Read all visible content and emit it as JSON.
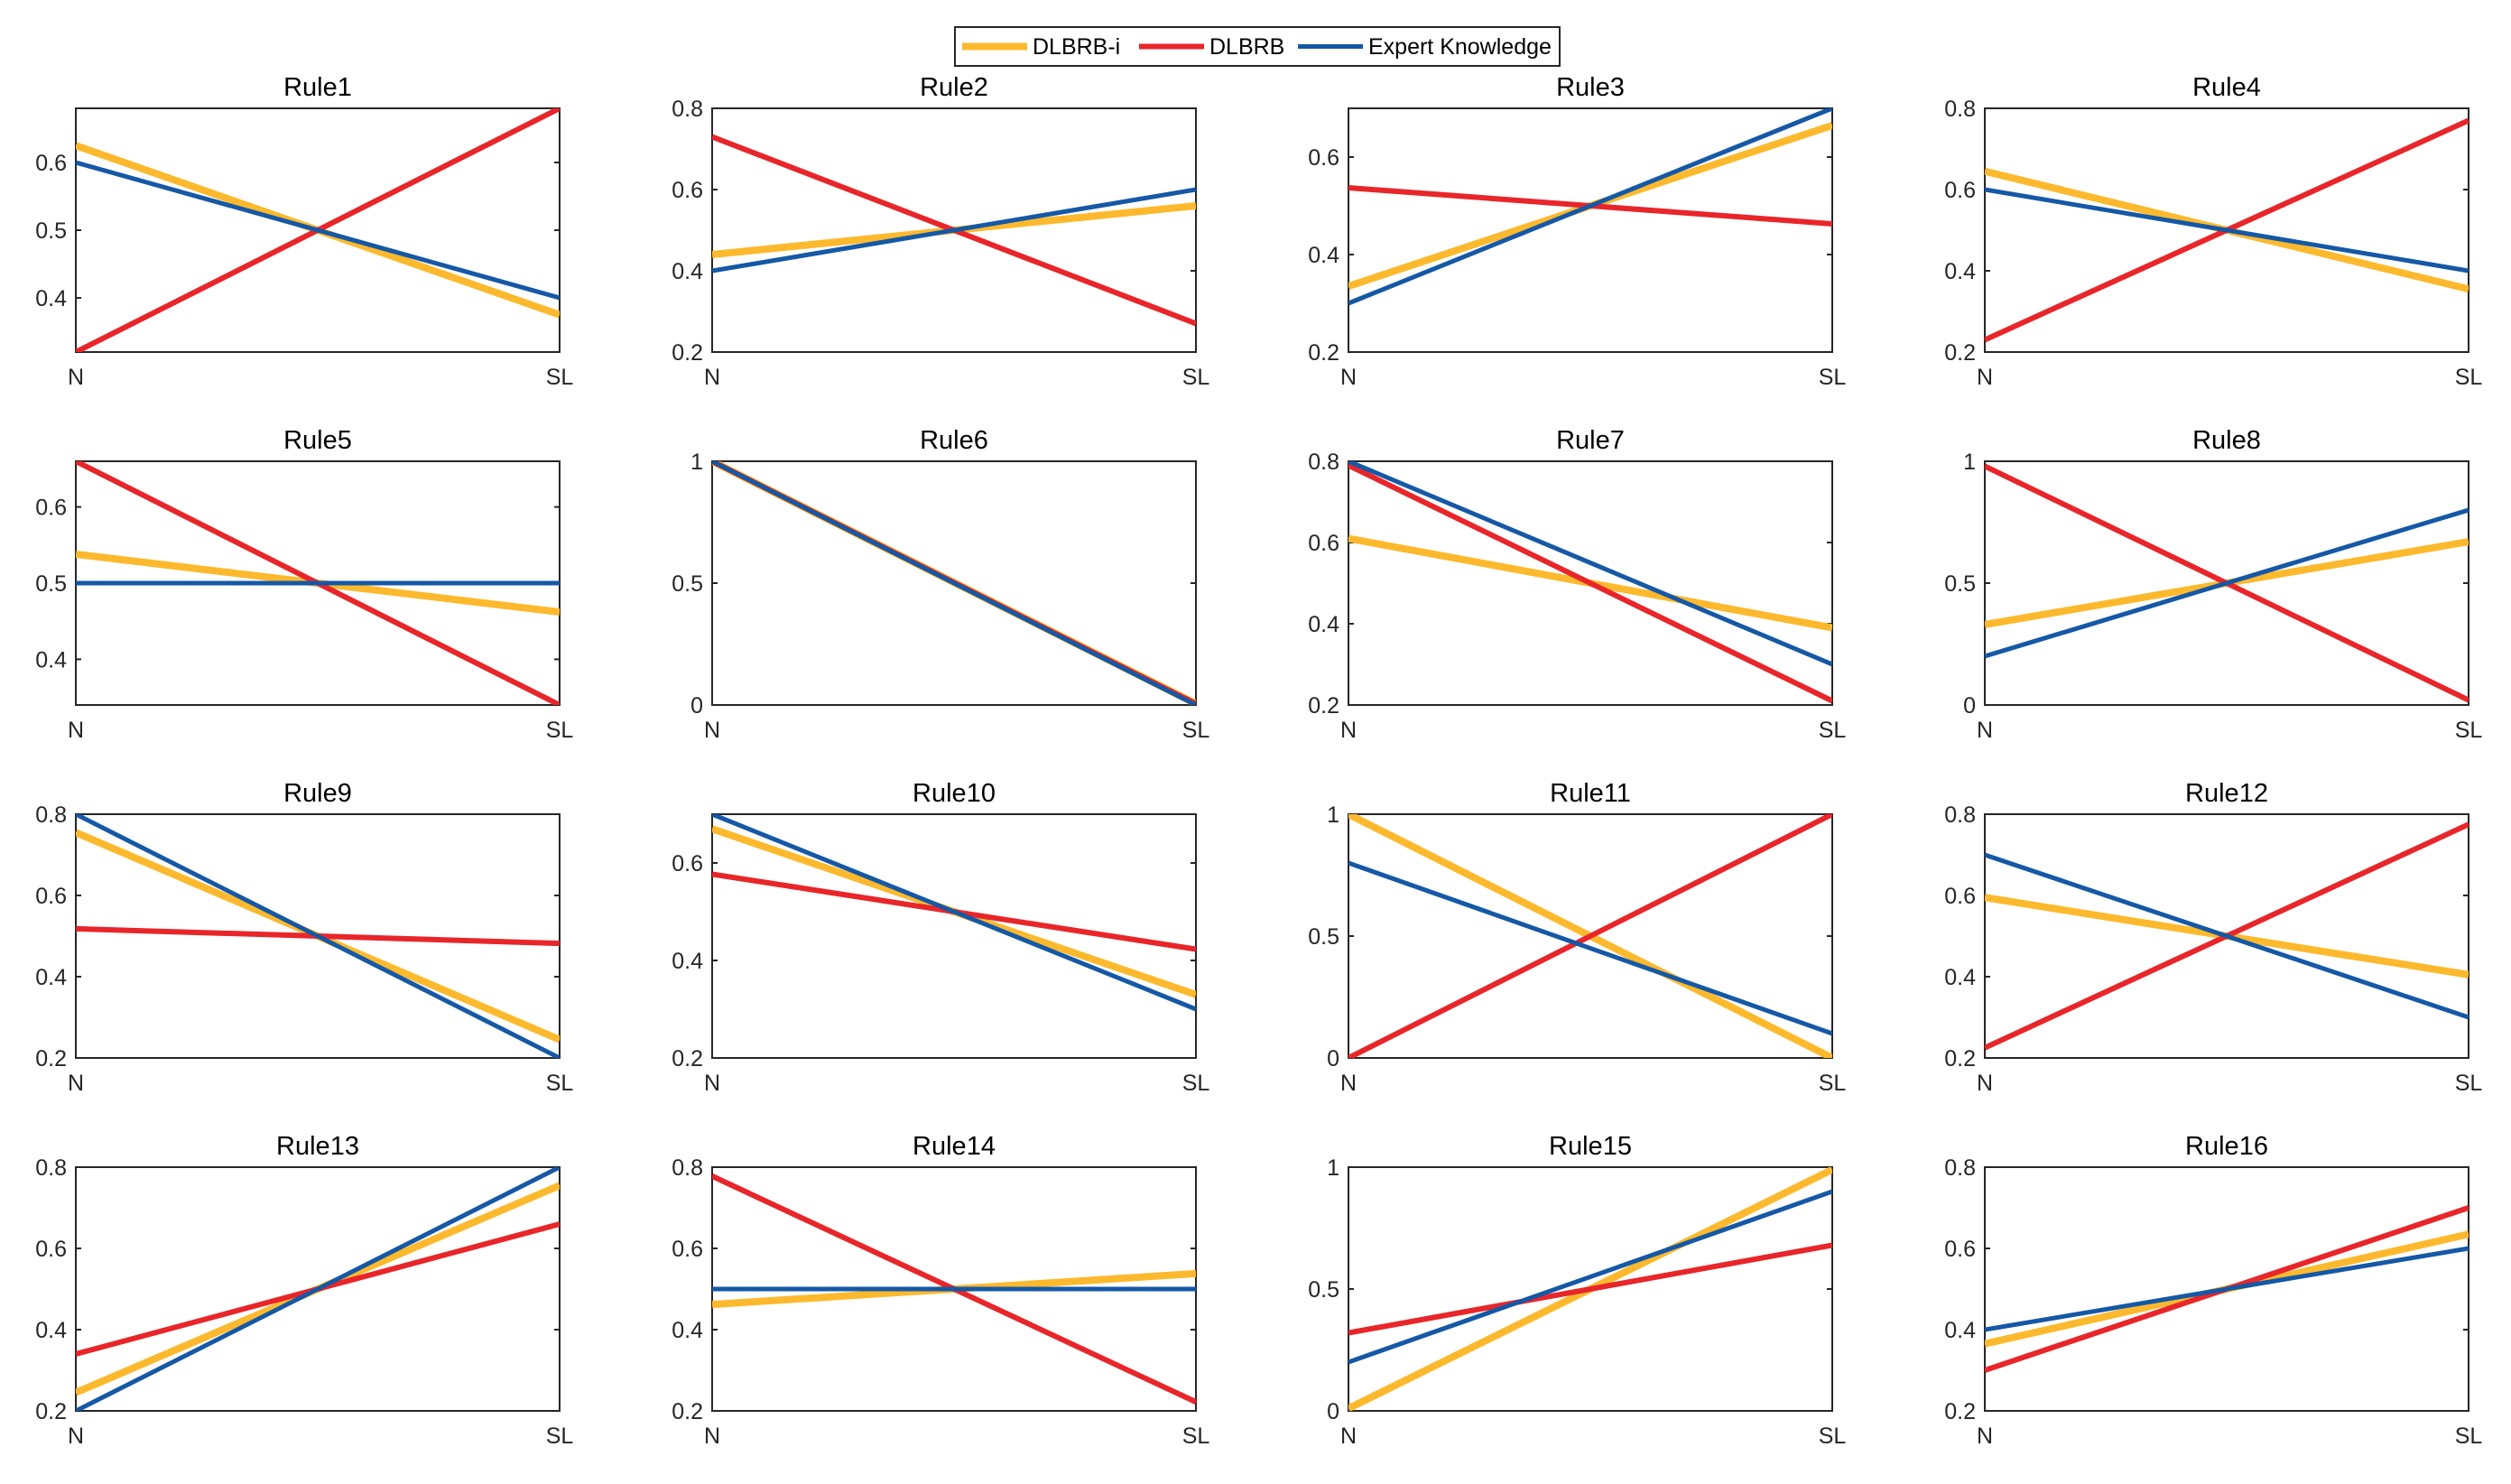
{
  "legend": {
    "entries": [
      {
        "name": "DLBRB-i",
        "color": "#FDB92D"
      },
      {
        "name": "DLBRB",
        "color": "#E8262A"
      },
      {
        "name": "Expert Knowledge",
        "color": "#1558A6"
      }
    ]
  },
  "chart_data": [
    {
      "type": "line",
      "title": "Rule1",
      "categories": [
        "N",
        "SL"
      ],
      "ylim": [
        0.32,
        0.68
      ],
      "yticks": [
        "0.4",
        "0.5",
        "0.6"
      ],
      "series": [
        {
          "name": "DLBRB-i",
          "values": [
            0.625,
            0.375
          ]
        },
        {
          "name": "DLBRB",
          "values": [
            0.32,
            0.68
          ]
        },
        {
          "name": "Expert Knowledge",
          "values": [
            0.6,
            0.4
          ]
        }
      ]
    },
    {
      "type": "line",
      "title": "Rule2",
      "categories": [
        "N",
        "SL"
      ],
      "ylim": [
        0.2,
        0.8
      ],
      "yticks": [
        "0.2",
        "0.4",
        "0.6",
        "0.8"
      ],
      "series": [
        {
          "name": "DLBRB-i",
          "values": [
            0.44,
            0.56
          ]
        },
        {
          "name": "DLBRB",
          "values": [
            0.73,
            0.27
          ]
        },
        {
          "name": "Expert Knowledge",
          "values": [
            0.4,
            0.6
          ]
        }
      ]
    },
    {
      "type": "line",
      "title": "Rule3",
      "categories": [
        "N",
        "SL"
      ],
      "ylim": [
        0.2,
        0.7
      ],
      "yticks": [
        "0.2",
        "0.4",
        "0.6"
      ],
      "series": [
        {
          "name": "DLBRB-i",
          "values": [
            0.335,
            0.665
          ]
        },
        {
          "name": "DLBRB",
          "values": [
            0.537,
            0.463
          ]
        },
        {
          "name": "Expert Knowledge",
          "values": [
            0.3,
            0.7
          ]
        }
      ]
    },
    {
      "type": "line",
      "title": "Rule4",
      "categories": [
        "N",
        "SL"
      ],
      "ylim": [
        0.2,
        0.8
      ],
      "yticks": [
        "0.2",
        "0.4",
        "0.6",
        "0.8"
      ],
      "series": [
        {
          "name": "DLBRB-i",
          "values": [
            0.645,
            0.355
          ]
        },
        {
          "name": "DLBRB",
          "values": [
            0.23,
            0.77
          ]
        },
        {
          "name": "Expert Knowledge",
          "values": [
            0.6,
            0.4
          ]
        }
      ]
    },
    {
      "type": "line",
      "title": "Rule5",
      "categories": [
        "N",
        "SL"
      ],
      "ylim": [
        0.34,
        0.66
      ],
      "yticks": [
        "0.4",
        "0.5",
        "0.6"
      ],
      "series": [
        {
          "name": "DLBRB-i",
          "values": [
            0.538,
            0.462
          ]
        },
        {
          "name": "DLBRB",
          "values": [
            0.66,
            0.34
          ]
        },
        {
          "name": "Expert Knowledge",
          "values": [
            0.5,
            0.5
          ]
        }
      ]
    },
    {
      "type": "line",
      "title": "Rule6",
      "categories": [
        "N",
        "SL"
      ],
      "ylim": [
        0,
        1
      ],
      "yticks": [
        "0",
        "0.5",
        "1"
      ],
      "series": [
        {
          "name": "DLBRB-i",
          "values": [
            1,
            0.005
          ]
        },
        {
          "name": "DLBRB",
          "values": [
            1,
            0.005
          ]
        },
        {
          "name": "Expert Knowledge",
          "values": [
            1,
            0
          ]
        }
      ]
    },
    {
      "type": "line",
      "title": "Rule7",
      "categories": [
        "N",
        "SL"
      ],
      "ylim": [
        0.2,
        0.8
      ],
      "yticks": [
        "0.2",
        "0.4",
        "0.6",
        "0.8"
      ],
      "series": [
        {
          "name": "DLBRB-i",
          "values": [
            0.61,
            0.39
          ]
        },
        {
          "name": "DLBRB",
          "values": [
            0.79,
            0.21
          ]
        },
        {
          "name": "Expert Knowledge",
          "values": [
            0.8,
            0.3
          ]
        }
      ]
    },
    {
      "type": "line",
      "title": "Rule8",
      "categories": [
        "N",
        "SL"
      ],
      "ylim": [
        0,
        1
      ],
      "yticks": [
        "0",
        "0.5",
        "1"
      ],
      "series": [
        {
          "name": "DLBRB-i",
          "values": [
            0.33,
            0.67
          ]
        },
        {
          "name": "DLBRB",
          "values": [
            0.98,
            0.02
          ]
        },
        {
          "name": "Expert Knowledge",
          "values": [
            0.2,
            0.8
          ]
        }
      ]
    },
    {
      "type": "line",
      "title": "Rule9",
      "categories": [
        "N",
        "SL"
      ],
      "ylim": [
        0.2,
        0.8
      ],
      "yticks": [
        "0.2",
        "0.4",
        "0.6",
        "0.8"
      ],
      "series": [
        {
          "name": "DLBRB-i",
          "values": [
            0.755,
            0.245
          ]
        },
        {
          "name": "DLBRB",
          "values": [
            0.518,
            0.482
          ]
        },
        {
          "name": "Expert Knowledge",
          "values": [
            0.8,
            0.2
          ]
        }
      ]
    },
    {
      "type": "line",
      "title": "Rule10",
      "categories": [
        "N",
        "SL"
      ],
      "ylim": [
        0.2,
        0.7
      ],
      "yticks": [
        "0.2",
        "0.4",
        "0.6"
      ],
      "series": [
        {
          "name": "DLBRB-i",
          "values": [
            0.67,
            0.33
          ]
        },
        {
          "name": "DLBRB",
          "values": [
            0.577,
            0.423
          ]
        },
        {
          "name": "Expert Knowledge",
          "values": [
            0.7,
            0.3
          ]
        }
      ]
    },
    {
      "type": "line",
      "title": "Rule11",
      "categories": [
        "N",
        "SL"
      ],
      "ylim": [
        0,
        1
      ],
      "yticks": [
        "0",
        "0.5",
        "1"
      ],
      "series": [
        {
          "name": "DLBRB-i",
          "values": [
            1,
            0
          ]
        },
        {
          "name": "DLBRB",
          "values": [
            0,
            1
          ]
        },
        {
          "name": "Expert Knowledge",
          "values": [
            0.8,
            0.1
          ]
        }
      ]
    },
    {
      "type": "line",
      "title": "Rule12",
      "categories": [
        "N",
        "SL"
      ],
      "ylim": [
        0.2,
        0.8
      ],
      "yticks": [
        "0.2",
        "0.4",
        "0.6",
        "0.8"
      ],
      "series": [
        {
          "name": "DLBRB-i",
          "values": [
            0.595,
            0.405
          ]
        },
        {
          "name": "DLBRB",
          "values": [
            0.225,
            0.775
          ]
        },
        {
          "name": "Expert Knowledge",
          "values": [
            0.7,
            0.3
          ]
        }
      ]
    },
    {
      "type": "line",
      "title": "Rule13",
      "categories": [
        "N",
        "SL"
      ],
      "ylim": [
        0.2,
        0.8
      ],
      "yticks": [
        "0.2",
        "0.4",
        "0.6",
        "0.8"
      ],
      "series": [
        {
          "name": "DLBRB-i",
          "values": [
            0.245,
            0.755
          ]
        },
        {
          "name": "DLBRB",
          "values": [
            0.34,
            0.66
          ]
        },
        {
          "name": "Expert Knowledge",
          "values": [
            0.2,
            0.8
          ]
        }
      ]
    },
    {
      "type": "line",
      "title": "Rule14",
      "categories": [
        "N",
        "SL"
      ],
      "ylim": [
        0.2,
        0.8
      ],
      "yticks": [
        "0.2",
        "0.4",
        "0.6",
        "0.8"
      ],
      "series": [
        {
          "name": "DLBRB-i",
          "values": [
            0.462,
            0.538
          ]
        },
        {
          "name": "DLBRB",
          "values": [
            0.778,
            0.222
          ]
        },
        {
          "name": "Expert Knowledge",
          "values": [
            0.5,
            0.5
          ]
        }
      ]
    },
    {
      "type": "line",
      "title": "Rule15",
      "categories": [
        "N",
        "SL"
      ],
      "ylim": [
        0,
        1
      ],
      "yticks": [
        "0",
        "0.5",
        "1"
      ],
      "series": [
        {
          "name": "DLBRB-i",
          "values": [
            0.01,
            0.99
          ]
        },
        {
          "name": "DLBRB",
          "values": [
            0.32,
            0.68
          ]
        },
        {
          "name": "Expert Knowledge",
          "values": [
            0.2,
            0.9
          ]
        }
      ]
    },
    {
      "type": "line",
      "title": "Rule16",
      "categories": [
        "N",
        "SL"
      ],
      "ylim": [
        0.2,
        0.8
      ],
      "yticks": [
        "0.2",
        "0.4",
        "0.6",
        "0.8"
      ],
      "series": [
        {
          "name": "DLBRB-i",
          "values": [
            0.365,
            0.635
          ]
        },
        {
          "name": "DLBRB",
          "values": [
            0.3,
            0.7
          ]
        },
        {
          "name": "Expert Knowledge",
          "values": [
            0.4,
            0.6
          ]
        }
      ]
    }
  ]
}
